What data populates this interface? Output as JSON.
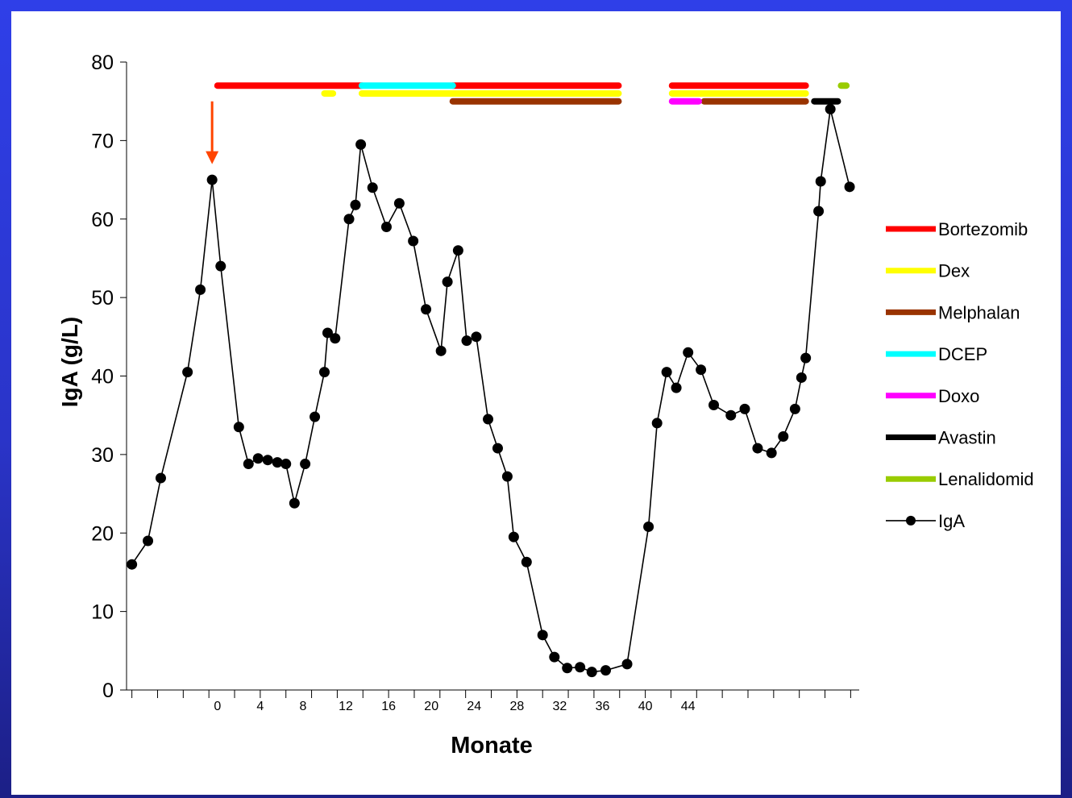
{
  "chart_data": {
    "type": "line",
    "title": "",
    "xlabel": "Monate",
    "ylabel": "IgA  (g/L)",
    "ylim": [
      0,
      80
    ],
    "yticks": [
      "0",
      "10",
      "20",
      "30",
      "40",
      "50",
      "60",
      "70",
      "80"
    ],
    "xticks": [
      "0",
      "4",
      "8",
      "12",
      "16",
      "20",
      "24",
      "28",
      "32",
      "36",
      "40",
      "44"
    ],
    "legend_position": "right",
    "series": [
      {
        "name": "IgA",
        "color": "#000000",
        "marker": "circle",
        "points": [
          [
            -8,
            16
          ],
          [
            -6.5,
            19
          ],
          [
            -5.3,
            27
          ],
          [
            -2.8,
            40.5
          ],
          [
            -1.6,
            51
          ],
          [
            -0.5,
            65
          ],
          [
            0.3,
            54
          ],
          [
            2,
            33.5
          ],
          [
            2.9,
            28.8
          ],
          [
            3.8,
            29.5
          ],
          [
            4.7,
            29.3
          ],
          [
            5.6,
            29
          ],
          [
            6.4,
            28.8
          ],
          [
            7.2,
            23.8
          ],
          [
            8.2,
            28.8
          ],
          [
            9.1,
            34.8
          ],
          [
            10,
            40.5
          ],
          [
            10.3,
            45.5
          ],
          [
            11,
            44.8
          ],
          [
            12.3,
            60
          ],
          [
            12.9,
            61.8
          ],
          [
            13.4,
            69.5
          ],
          [
            14.5,
            64
          ],
          [
            15.8,
            59
          ],
          [
            17,
            62
          ],
          [
            18.3,
            57.2
          ],
          [
            19.5,
            48.5
          ],
          [
            20.9,
            43.2
          ],
          [
            21.5,
            52
          ],
          [
            22.5,
            56
          ],
          [
            23.3,
            44.5
          ],
          [
            24.2,
            45
          ],
          [
            25.3,
            34.5
          ],
          [
            26.2,
            30.8
          ],
          [
            27.1,
            27.2
          ],
          [
            27.7,
            19.5
          ],
          [
            28.9,
            16.3
          ],
          [
            30.4,
            7
          ],
          [
            31.5,
            4.2
          ],
          [
            32.7,
            2.8
          ],
          [
            33.9,
            2.9
          ],
          [
            35,
            2.3
          ],
          [
            36.3,
            2.5
          ],
          [
            38.3,
            3.3
          ],
          [
            40.3,
            20.8
          ],
          [
            41.1,
            34
          ],
          [
            42,
            40.5
          ],
          [
            42.9,
            38.5
          ],
          [
            44,
            43
          ],
          [
            45.2,
            40.8
          ],
          [
            46.4,
            36.3
          ],
          [
            48,
            35
          ],
          [
            49.3,
            35.8
          ],
          [
            50.5,
            30.8
          ],
          [
            51.8,
            30.2
          ],
          [
            52.9,
            32.3
          ],
          [
            54,
            35.8
          ],
          [
            54.6,
            39.8
          ],
          [
            55,
            42.3
          ],
          [
            56.2,
            61
          ],
          [
            56.4,
            64.8
          ],
          [
            57.3,
            74
          ],
          [
            59.1,
            64.1
          ]
        ]
      }
    ],
    "treatments": [
      {
        "name": "Bortezomib",
        "color": "#ff0000",
        "level": 77,
        "segments": [
          [
            0,
            13.5
          ],
          [
            22,
            37.5
          ],
          [
            42.5,
            55
          ]
        ]
      },
      {
        "name": "Dex",
        "color": "#ffff00",
        "level": 76,
        "segments": [
          [
            10,
            10.8
          ],
          [
            13.5,
            37.5
          ],
          [
            42.5,
            55
          ]
        ]
      },
      {
        "name": "Melphalan",
        "color": "#993300",
        "level": 75,
        "segments": [
          [
            22,
            37.5
          ],
          [
            45.5,
            55
          ]
        ]
      },
      {
        "name": "DCEP",
        "color": "#00ffff",
        "level": 77,
        "segments": [
          [
            13.5,
            22
          ]
        ]
      },
      {
        "name": "Doxo",
        "color": "#ff00ff",
        "level": 75,
        "segments": [
          [
            42.5,
            45
          ]
        ]
      },
      {
        "name": "Avastin",
        "color": "#000000",
        "level": 75,
        "segments": [
          [
            55.8,
            58
          ]
        ]
      },
      {
        "name": "Lenalidomid",
        "color": "#99cc00",
        "level": 77,
        "segments": [
          [
            58.3,
            58.8
          ]
        ]
      }
    ],
    "annotation": {
      "type": "arrow",
      "color": "#ff4400",
      "x": -0.5,
      "y_from": 75,
      "y_to": 67
    }
  }
}
